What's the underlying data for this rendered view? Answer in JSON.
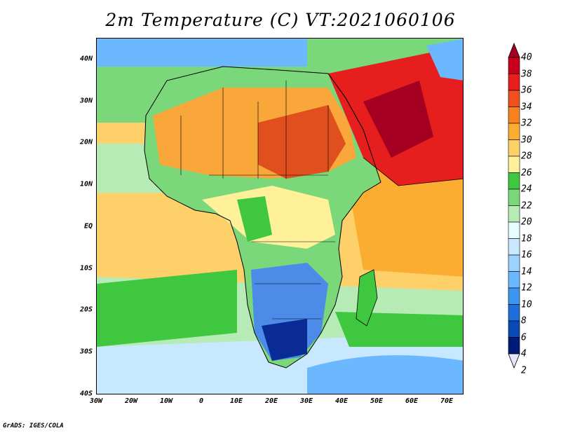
{
  "title": "2m Temperature (C) VT:2021060106",
  "credit": "GrADS: IGES/COLA",
  "lat_ticks": [
    "40N",
    "30N",
    "20N",
    "10N",
    "EQ",
    "10S",
    "20S",
    "30S",
    "40S"
  ],
  "lon_ticks": [
    "30W",
    "20W",
    "10W",
    "0",
    "10E",
    "20E",
    "30E",
    "40E",
    "50E",
    "60E",
    "70E"
  ],
  "colorbar": {
    "labels": [
      "40",
      "38",
      "36",
      "34",
      "32",
      "30",
      "28",
      "26",
      "24",
      "22",
      "20",
      "18",
      "16",
      "14",
      "12",
      "10",
      "8",
      "6",
      "4",
      "2"
    ],
    "colors": [
      "#a50021",
      "#c8001c",
      "#e61e1e",
      "#f0501e",
      "#f7821e",
      "#fbad32",
      "#fdd06a",
      "#fff09a",
      "#3fc83f",
      "#7ad77a",
      "#b6ebb6",
      "#e6fcff",
      "#c8e8ff",
      "#9cd2ff",
      "#6cb8ff",
      "#3c96f0",
      "#1e6edc",
      "#0a4ab4",
      "#001a78",
      "#e6e6ff"
    ]
  },
  "colors": {
    "ocean_south": "#fde28a",
    "sahara": "#f9a63b",
    "arabia": "#d9261e",
    "southern_africa": "#4c8ce8",
    "highland_cold": "#0a2a96",
    "cool_band": "#3fc83f"
  }
}
